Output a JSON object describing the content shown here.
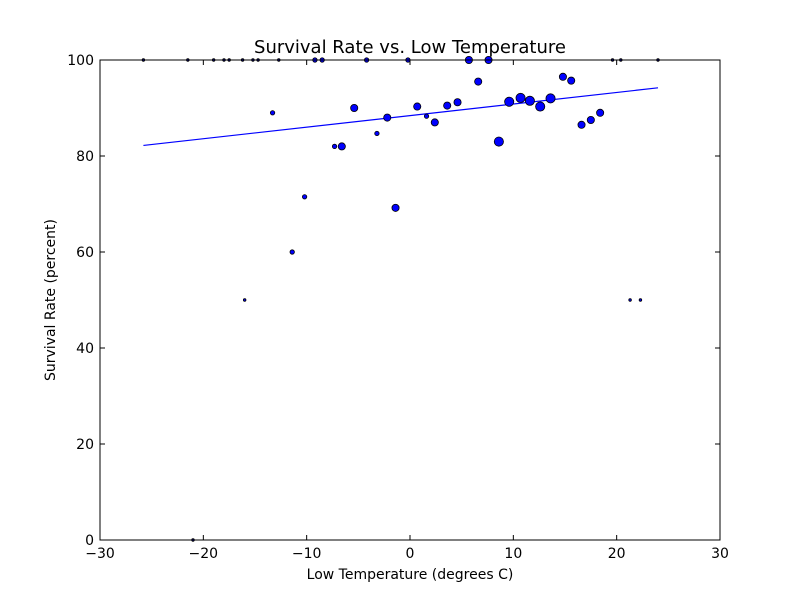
{
  "chart_data": {
    "type": "scatter",
    "title": "Survival Rate vs. Low Temperature",
    "xlabel": "Low Temperature (degrees C)",
    "ylabel": "Survival Rate (percent)",
    "xlim": [
      -30,
      30
    ],
    "ylim": [
      0,
      100
    ],
    "xticks": [
      -30,
      -20,
      -10,
      0,
      10,
      20,
      30
    ],
    "yticks": [
      0,
      20,
      40,
      60,
      80,
      100
    ],
    "grid": false,
    "marker_color": "#0000ff",
    "line_color": "#0000ff",
    "points": [
      {
        "x": -25.8,
        "y": 100,
        "s": 1
      },
      {
        "x": -21.5,
        "y": 100,
        "s": 1
      },
      {
        "x": -21.0,
        "y": 0,
        "s": 1
      },
      {
        "x": -19.0,
        "y": 100,
        "s": 1
      },
      {
        "x": -18.0,
        "y": 100,
        "s": 1
      },
      {
        "x": -17.5,
        "y": 100,
        "s": 1
      },
      {
        "x": -16.2,
        "y": 100,
        "s": 1
      },
      {
        "x": -16.0,
        "y": 50,
        "s": 1
      },
      {
        "x": -15.2,
        "y": 100,
        "s": 1
      },
      {
        "x": -14.7,
        "y": 100,
        "s": 1
      },
      {
        "x": -13.3,
        "y": 89,
        "s": 2
      },
      {
        "x": -12.7,
        "y": 100,
        "s": 1
      },
      {
        "x": -11.4,
        "y": 60,
        "s": 2
      },
      {
        "x": -10.2,
        "y": 71.5,
        "s": 2
      },
      {
        "x": -9.2,
        "y": 100,
        "s": 2
      },
      {
        "x": -8.5,
        "y": 100,
        "s": 2
      },
      {
        "x": -7.3,
        "y": 82,
        "s": 2
      },
      {
        "x": -6.6,
        "y": 82,
        "s": 3
      },
      {
        "x": -5.4,
        "y": 90,
        "s": 3
      },
      {
        "x": -4.2,
        "y": 100,
        "s": 2
      },
      {
        "x": -3.2,
        "y": 84.7,
        "s": 2
      },
      {
        "x": -2.2,
        "y": 88,
        "s": 3
      },
      {
        "x": -1.4,
        "y": 69.2,
        "s": 3
      },
      {
        "x": -0.2,
        "y": 100,
        "s": 2
      },
      {
        "x": 0.7,
        "y": 90.3,
        "s": 3
      },
      {
        "x": 1.6,
        "y": 88.3,
        "s": 2
      },
      {
        "x": 2.4,
        "y": 87,
        "s": 3
      },
      {
        "x": 3.6,
        "y": 90.5,
        "s": 3
      },
      {
        "x": 4.6,
        "y": 91.2,
        "s": 3
      },
      {
        "x": 5.7,
        "y": 100,
        "s": 3
      },
      {
        "x": 6.6,
        "y": 95.5,
        "s": 3
      },
      {
        "x": 7.6,
        "y": 100,
        "s": 3
      },
      {
        "x": 8.6,
        "y": 83,
        "s": 4
      },
      {
        "x": 9.6,
        "y": 91.3,
        "s": 4
      },
      {
        "x": 10.7,
        "y": 92.1,
        "s": 4
      },
      {
        "x": 11.6,
        "y": 91.5,
        "s": 4
      },
      {
        "x": 12.6,
        "y": 90.3,
        "s": 4
      },
      {
        "x": 13.6,
        "y": 92,
        "s": 4
      },
      {
        "x": 14.8,
        "y": 96.5,
        "s": 3
      },
      {
        "x": 15.6,
        "y": 95.7,
        "s": 3
      },
      {
        "x": 16.6,
        "y": 86.5,
        "s": 3
      },
      {
        "x": 17.5,
        "y": 87.5,
        "s": 3
      },
      {
        "x": 18.4,
        "y": 89,
        "s": 3
      },
      {
        "x": 19.6,
        "y": 100,
        "s": 1
      },
      {
        "x": 20.4,
        "y": 100,
        "s": 1
      },
      {
        "x": 21.3,
        "y": 50,
        "s": 1
      },
      {
        "x": 22.3,
        "y": 50,
        "s": 1
      },
      {
        "x": 24.0,
        "y": 100,
        "s": 1
      }
    ],
    "fit_line": {
      "x1": -25.8,
      "y1": 82.2,
      "x2": 24.0,
      "y2": 94.2
    }
  }
}
